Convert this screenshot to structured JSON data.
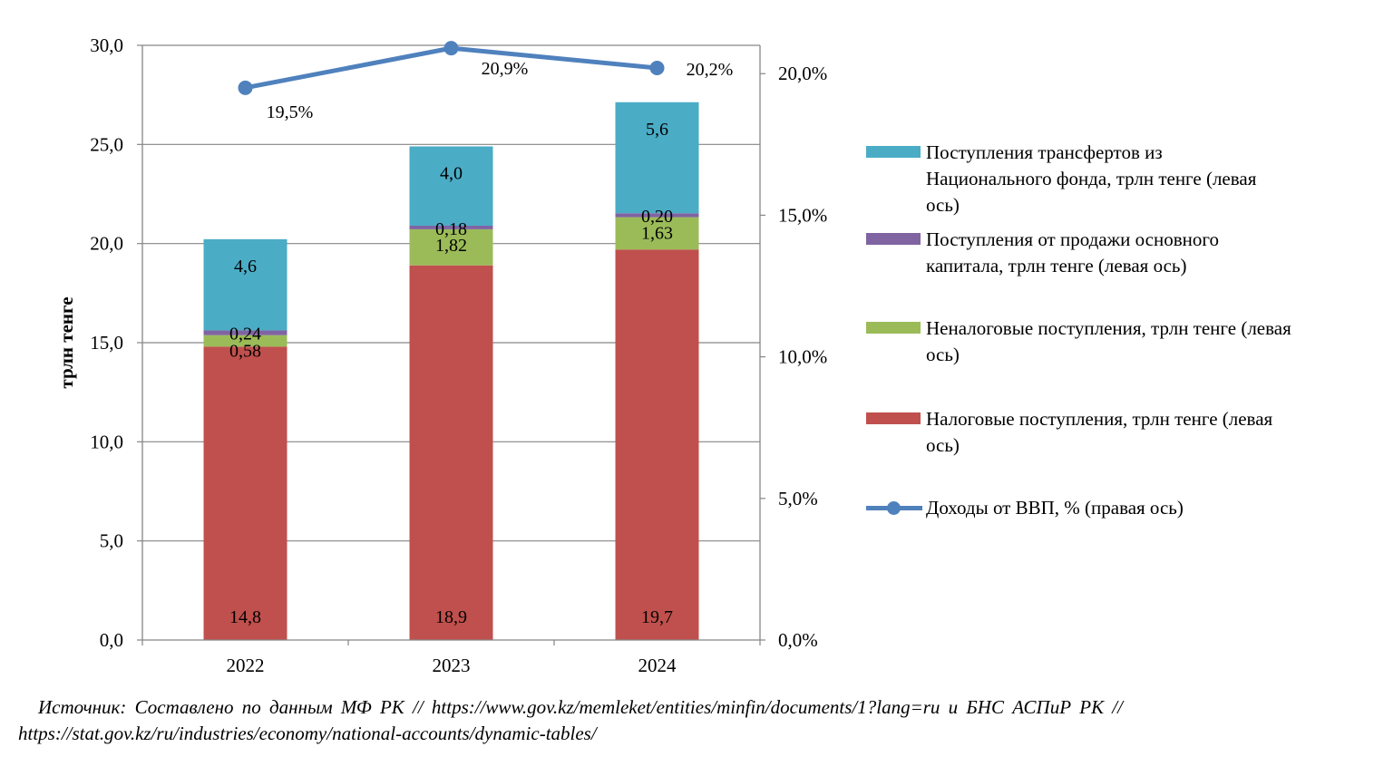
{
  "chart_data": {
    "type": "bar",
    "stacked": true,
    "categories": [
      "2022",
      "2023",
      "2024"
    ],
    "ylabel": "трлн тенге",
    "ylim": [
      0,
      30
    ],
    "yticks": [
      "0,0",
      "5,0",
      "10,0",
      "15,0",
      "20,0",
      "25,0",
      "30,0"
    ],
    "y2lim": [
      0,
      21
    ],
    "y2ticks": [
      "0,0%",
      "5,0%",
      "10,0%",
      "15,0%",
      "20,0%"
    ],
    "grid": true,
    "series": [
      {
        "name": "Налоговые поступления, трлн тенге (левая ось)",
        "kind": "bar",
        "axis": "left",
        "color": "#C0504D",
        "values": [
          14.8,
          18.9,
          19.7
        ],
        "labels": [
          "14,8",
          "18,9",
          "19,7"
        ]
      },
      {
        "name": "Неналоговые поступления, трлн тенге (левая ось)",
        "kind": "bar",
        "axis": "left",
        "color": "#9BBB59",
        "values": [
          0.58,
          1.82,
          1.63
        ],
        "labels": [
          "0,58",
          "1,82",
          "1,63"
        ]
      },
      {
        "name": "Поступления от продажи основного капитала, трлн тенге (левая ось)",
        "kind": "bar",
        "axis": "left",
        "color": "#8064A2",
        "values": [
          0.24,
          0.18,
          0.2
        ],
        "labels": [
          "0,24",
          "0,18",
          "0,20"
        ]
      },
      {
        "name": "Поступления трансфертов из Национального фонда, трлн тенге (левая ось)",
        "kind": "bar",
        "axis": "left",
        "color": "#4BACC6",
        "values": [
          4.6,
          4.0,
          5.6
        ],
        "labels": [
          "4,6",
          "4,0",
          "5,6"
        ]
      },
      {
        "name": "Доходы от ВВП, % (правая ось)",
        "kind": "line",
        "axis": "right",
        "color": "#4F81BD",
        "values": [
          19.5,
          20.9,
          20.2
        ],
        "labels": [
          "19,5%",
          "20,9%",
          "20,2%"
        ]
      }
    ]
  },
  "legend": {
    "items": [
      {
        "text": "Поступления трансфертов из Национального фонда, трлн тенге (левая ось)",
        "color": "#4BACC6"
      },
      {
        "text": "Поступления от продажи основного капитала, трлн тенге (левая ось)",
        "color": "#8064A2"
      },
      {
        "text": "Неналоговые поступления, трлн тенге (левая ось)",
        "color": "#9BBB59"
      },
      {
        "text": "Налоговые поступления, трлн тенге (левая ось)",
        "color": "#C0504D"
      },
      {
        "text": "Доходы от ВВП, % (правая ось)",
        "color": "#4F81BD"
      }
    ]
  },
  "source": {
    "line1": "Источник: Составлено по данным МФ РК // https://www.gov.kz/memleket/entities/minfin/documents/1?lang=ru и БНС АСПиР РК //",
    "line2": "https://stat.gov.kz/ru/industries/economy/national-accounts/dynamic-tables/"
  }
}
